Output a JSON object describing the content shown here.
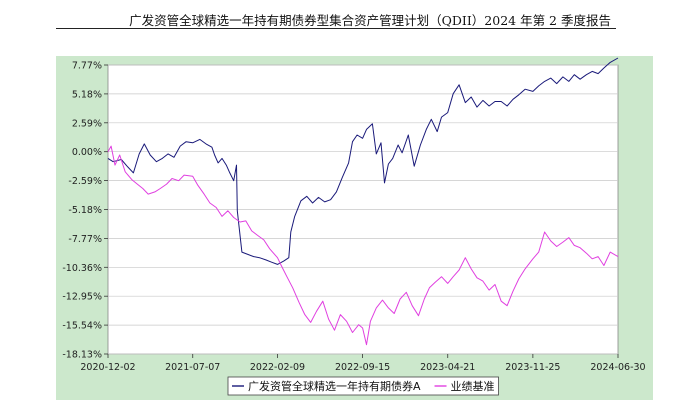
{
  "header": {
    "title": "广发资管全球精选一年持有期债券型集合资产管理计划（QDII）2024 年第 2 季度报告"
  },
  "colors": {
    "panel_background": "#cce8cc",
    "plot_background": "#ffffff",
    "fund_line": "#1a1a7a",
    "benchmark_line": "#e040e0"
  },
  "chart_data": {
    "type": "line",
    "title": "",
    "xlabel": "",
    "ylabel": "",
    "x_ticks": [
      "2020-12-02",
      "2021-07-07",
      "2022-02-09",
      "2022-09-15",
      "2023-04-21",
      "2023-11-25",
      "2024-06-30"
    ],
    "y_ticks": [
      "7.77%",
      "5.18%",
      "2.59%",
      "0.00%",
      "-2.59%",
      "-5.18%",
      "-7.77%",
      "-10.36%",
      "-12.95%",
      "-15.54%",
      "-18.13%"
    ],
    "ylim": [
      -18.13,
      7.77
    ],
    "y_unit": "%",
    "grid": "horizontal",
    "legend_position": "bottom",
    "series": [
      {
        "name": "广发资管全球精选一年持有期债券A",
        "x": [
          "2020-12-02",
          "2020-12-15",
          "2021-01-05",
          "2021-01-20",
          "2021-02-05",
          "2021-02-20",
          "2021-03-05",
          "2021-03-20",
          "2021-04-05",
          "2021-04-20",
          "2021-05-05",
          "2021-05-20",
          "2021-06-05",
          "2021-06-20",
          "2021-07-07",
          "2021-07-25",
          "2021-08-10",
          "2021-08-25",
          "2021-09-01",
          "2021-09-10",
          "2021-09-20",
          "2021-10-01",
          "2021-10-10",
          "2021-10-20",
          "2021-10-27",
          "2021-10-29",
          "2021-11-10",
          "2021-11-25",
          "2021-12-10",
          "2021-12-25",
          "2022-01-10",
          "2022-01-25",
          "2022-02-09",
          "2022-02-25",
          "2022-03-10",
          "2022-03-15",
          "2022-03-25",
          "2022-04-10",
          "2022-04-25",
          "2022-05-10",
          "2022-05-25",
          "2022-06-10",
          "2022-06-25",
          "2022-07-10",
          "2022-07-25",
          "2022-08-10",
          "2022-08-20",
          "2022-09-01",
          "2022-09-15",
          "2022-09-25",
          "2022-10-10",
          "2022-10-20",
          "2022-11-01",
          "2022-11-10",
          "2022-11-20",
          "2022-12-01",
          "2022-12-15",
          "2022-12-25",
          "2023-01-10",
          "2023-01-25",
          "2023-02-10",
          "2023-02-25",
          "2023-03-10",
          "2023-03-25",
          "2023-04-05",
          "2023-04-21",
          "2023-05-05",
          "2023-05-20",
          "2023-06-05",
          "2023-06-20",
          "2023-07-05",
          "2023-07-20",
          "2023-08-05",
          "2023-08-20",
          "2023-09-05",
          "2023-09-20",
          "2023-10-05",
          "2023-10-20",
          "2023-11-05",
          "2023-11-25",
          "2023-12-10",
          "2023-12-25",
          "2024-01-10",
          "2024-01-25",
          "2024-02-10",
          "2024-02-25",
          "2024-03-10",
          "2024-03-25",
          "2024-04-10",
          "2024-04-25",
          "2024-05-10",
          "2024-05-25",
          "2024-06-10",
          "2024-06-30"
        ],
        "values": [
          -0.6,
          -0.9,
          -0.7,
          -1.3,
          -1.9,
          -0.2,
          0.7,
          -0.3,
          -0.9,
          -0.6,
          -0.2,
          -0.5,
          0.5,
          0.9,
          0.8,
          1.1,
          0.7,
          0.4,
          -0.3,
          -1.0,
          -0.6,
          -1.2,
          -1.9,
          -2.6,
          -1.2,
          -5.3,
          -9.0,
          -9.2,
          -9.4,
          -9.5,
          -9.7,
          -9.9,
          -10.1,
          -9.8,
          -9.5,
          -7.2,
          -5.8,
          -4.4,
          -4.0,
          -4.6,
          -4.1,
          -4.5,
          -4.3,
          -3.6,
          -2.3,
          -1.0,
          0.9,
          1.5,
          1.2,
          2.0,
          2.5,
          -0.2,
          0.8,
          -2.8,
          -1.1,
          -0.6,
          0.6,
          -0.1,
          1.5,
          -1.3,
          0.6,
          2.0,
          2.9,
          1.8,
          3.1,
          3.5,
          5.2,
          6.0,
          4.4,
          4.9,
          4.0,
          4.6,
          4.1,
          4.5,
          4.5,
          4.1,
          4.7,
          5.1,
          5.6,
          5.4,
          5.9,
          6.3,
          6.6,
          6.1,
          6.7,
          6.3,
          6.9,
          6.5,
          6.9,
          7.2,
          7.0,
          7.5,
          8.0,
          8.4
        ]
      },
      {
        "name": "业绩基准",
        "x": [
          "2020-12-02",
          "2020-12-10",
          "2020-12-20",
          "2021-01-01",
          "2021-01-15",
          "2021-02-01",
          "2021-02-15",
          "2021-03-01",
          "2021-03-15",
          "2021-04-01",
          "2021-04-15",
          "2021-05-01",
          "2021-05-15",
          "2021-06-01",
          "2021-06-15",
          "2021-07-07",
          "2021-07-20",
          "2021-08-05",
          "2021-08-20",
          "2021-09-05",
          "2021-09-20",
          "2021-10-05",
          "2021-10-20",
          "2021-11-05",
          "2021-11-20",
          "2021-12-05",
          "2021-12-20",
          "2022-01-05",
          "2022-01-20",
          "2022-02-09",
          "2022-02-20",
          "2022-03-05",
          "2022-03-20",
          "2022-04-05",
          "2022-04-20",
          "2022-05-05",
          "2022-05-20",
          "2022-06-05",
          "2022-06-20",
          "2022-07-05",
          "2022-07-20",
          "2022-08-05",
          "2022-08-20",
          "2022-09-05",
          "2022-09-15",
          "2022-09-25",
          "2022-10-05",
          "2022-10-20",
          "2022-11-05",
          "2022-11-20",
          "2022-12-05",
          "2022-12-20",
          "2023-01-05",
          "2023-01-20",
          "2023-02-05",
          "2023-02-20",
          "2023-03-05",
          "2023-03-20",
          "2023-04-05",
          "2023-04-21",
          "2023-05-05",
          "2023-05-20",
          "2023-06-05",
          "2023-06-20",
          "2023-07-05",
          "2023-07-20",
          "2023-08-05",
          "2023-08-20",
          "2023-09-05",
          "2023-09-20",
          "2023-10-05",
          "2023-10-20",
          "2023-11-05",
          "2023-11-25",
          "2023-12-10",
          "2023-12-25",
          "2024-01-10",
          "2024-01-25",
          "2024-02-10",
          "2024-02-25",
          "2024-03-10",
          "2024-03-25",
          "2024-04-10",
          "2024-04-25",
          "2024-05-10",
          "2024-05-25",
          "2024-06-10",
          "2024-06-30"
        ],
        "values": [
          0.0,
          0.5,
          -1.2,
          -0.3,
          -1.8,
          -2.5,
          -2.9,
          -3.3,
          -3.8,
          -3.6,
          -3.3,
          -2.9,
          -2.4,
          -2.6,
          -2.1,
          -2.2,
          -3.0,
          -3.8,
          -4.6,
          -5.0,
          -5.8,
          -5.3,
          -5.9,
          -6.3,
          -6.2,
          -7.1,
          -7.5,
          -7.9,
          -8.7,
          -9.5,
          -10.3,
          -11.2,
          -12.2,
          -13.5,
          -14.6,
          -15.3,
          -14.3,
          -13.4,
          -15.0,
          -16.0,
          -14.6,
          -15.2,
          -16.2,
          -15.5,
          -15.8,
          -17.3,
          -15.2,
          -14.0,
          -13.3,
          -14.0,
          -14.5,
          -13.2,
          -12.6,
          -13.8,
          -14.7,
          -13.2,
          -12.2,
          -11.7,
          -11.2,
          -11.8,
          -11.2,
          -10.6,
          -9.5,
          -10.5,
          -11.3,
          -11.6,
          -12.4,
          -11.9,
          -13.4,
          -13.8,
          -12.5,
          -11.4,
          -10.5,
          -9.6,
          -9.0,
          -7.2,
          -8.0,
          -8.5,
          -8.1,
          -7.7,
          -8.4,
          -8.6,
          -9.1,
          -9.6,
          -9.4,
          -10.2,
          -9.0,
          -9.4
        ]
      }
    ]
  }
}
